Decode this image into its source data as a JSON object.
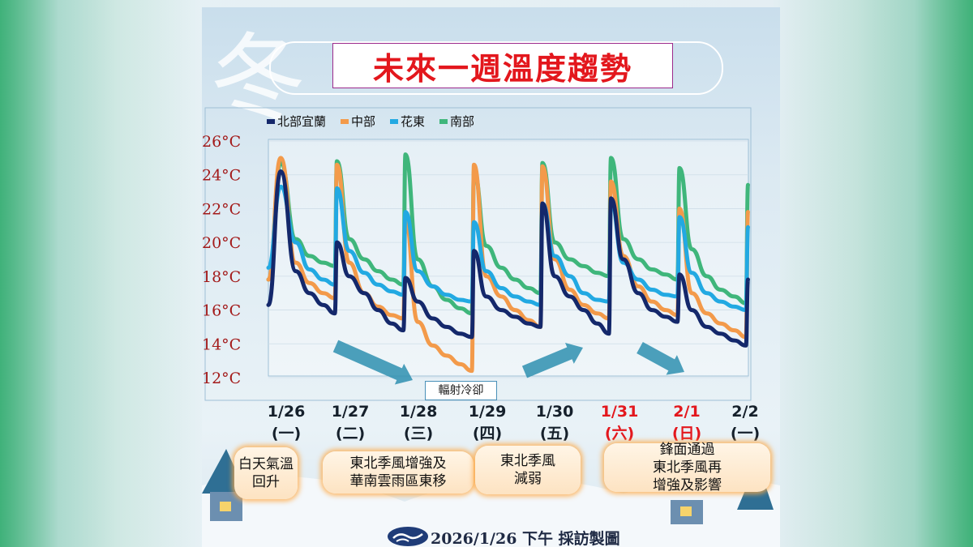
{
  "title": "未來一週溫度趨勢",
  "winter_glyph": "冬",
  "legend": [
    {
      "name": "北部宜蘭",
      "color": "#14286b"
    },
    {
      "name": "中部",
      "color": "#f39a4a"
    },
    {
      "name": "花東",
      "color": "#22a9e2"
    },
    {
      "name": "南部",
      "color": "#3fb67b"
    }
  ],
  "y_ticks": [
    "26°C",
    "24°C",
    "22°C",
    "20°C",
    "18°C",
    "16°C",
    "14°C",
    "12°C"
  ],
  "dates": [
    {
      "date": "1/26",
      "weekday": "(一)",
      "red": false
    },
    {
      "date": "1/27",
      "weekday": "(二)",
      "red": false
    },
    {
      "date": "1/28",
      "weekday": "(三)",
      "red": false
    },
    {
      "date": "1/29",
      "weekday": "(四)",
      "red": false
    },
    {
      "date": "1/30",
      "weekday": "(五)",
      "red": false
    },
    {
      "date": "1/31",
      "weekday": "(六)",
      "red": true
    },
    {
      "date": "2/1",
      "weekday": "(日)",
      "red": true
    },
    {
      "date": "2/2",
      "weekday": "(一)",
      "red": false
    }
  ],
  "annotation": "輻射冷卻",
  "notes": [
    {
      "line1": "白天氣溫",
      "line2": "回升",
      "line3": ""
    },
    {
      "line1": "東北季風增強及",
      "line2": "華南雲雨區東移",
      "line3": ""
    },
    {
      "line1": "東北季風",
      "line2": "減弱",
      "line3": ""
    },
    {
      "line1": "鋒面通過",
      "line2": "東北季風再",
      "line3": "增強及影響"
    }
  ],
  "footer": "2026/1/26 下午 採訪製圖",
  "colors": {
    "north": "#14286b",
    "central": "#f39a4a",
    "east": "#22a9e2",
    "south": "#3fb67b",
    "axis_label": "#a31a1a",
    "arrow": "#2e8fb0"
  },
  "chart_data": {
    "type": "line",
    "title": "未來一週溫度趨勢",
    "xlabel": "",
    "ylabel": "",
    "ylim": [
      12,
      26
    ],
    "categories": [
      "1/26",
      "1/27",
      "1/28",
      "1/29",
      "1/30",
      "1/31",
      "2/1",
      "2/2"
    ],
    "series": [
      {
        "name": "北部宜蘭",
        "daily": [
          [
            16.3,
            24.2,
            18.3,
            17.0,
            16.3,
            15.8
          ],
          [
            20.0,
            18.0,
            17.0,
            16.0,
            15.2,
            14.8
          ],
          [
            17.9,
            16.5,
            15.5,
            15.0,
            14.6,
            14.4
          ],
          [
            19.5,
            16.8,
            16.0,
            15.6,
            15.2,
            15.0
          ],
          [
            22.3,
            18.0,
            16.8,
            16.0,
            15.2,
            14.6
          ],
          [
            22.6,
            19.0,
            17.0,
            16.0,
            15.6,
            15.3
          ],
          [
            18.1,
            16.0,
            15.0,
            14.6,
            14.2,
            13.9
          ],
          [
            17.8
          ]
        ]
      },
      {
        "name": "中部",
        "daily": [
          [
            17.8,
            25.0,
            18.8,
            17.6,
            17.0,
            16.7
          ],
          [
            24.6,
            18.8,
            17.0,
            16.2,
            15.7,
            15.5
          ],
          [
            21.4,
            15.3,
            13.9,
            13.3,
            12.8,
            12.4
          ],
          [
            24.6,
            18.0,
            16.8,
            16.0,
            15.4,
            15.0
          ],
          [
            24.5,
            19.0,
            17.2,
            16.3,
            15.8,
            15.5
          ],
          [
            23.6,
            19.2,
            17.4,
            16.5,
            16.0,
            15.7
          ],
          [
            22.0,
            17.0,
            15.8,
            15.2,
            14.8,
            14.4
          ],
          [
            21.8
          ]
        ]
      },
      {
        "name": "花東",
        "daily": [
          [
            18.5,
            23.3,
            20.0,
            18.4,
            17.8,
            17.5
          ],
          [
            23.2,
            19.5,
            18.2,
            17.5,
            17.1,
            16.9
          ],
          [
            21.8,
            18.3,
            17.4,
            16.9,
            16.6,
            16.5
          ],
          [
            21.2,
            18.3,
            17.3,
            16.8,
            16.5,
            16.3
          ],
          [
            22.3,
            19.2,
            18.0,
            17.0,
            16.6,
            16.5
          ],
          [
            22.4,
            18.8,
            17.8,
            17.2,
            16.9,
            16.8
          ],
          [
            21.5,
            18.2,
            17.0,
            16.5,
            16.2,
            16.0
          ],
          [
            20.9
          ]
        ]
      },
      {
        "name": "南部",
        "daily": [
          [
            17.8,
            24.7,
            20.2,
            19.2,
            18.8,
            18.6
          ],
          [
            24.8,
            20.2,
            19.0,
            18.3,
            17.8,
            17.5
          ],
          [
            25.2,
            19.0,
            17.4,
            16.6,
            16.1,
            15.8
          ],
          [
            24.2,
            19.8,
            18.5,
            17.8,
            17.3,
            17.0
          ],
          [
            24.7,
            20.0,
            19.0,
            18.6,
            18.2,
            18.0
          ],
          [
            25.0,
            20.2,
            19.0,
            18.4,
            18.1,
            17.8
          ],
          [
            24.4,
            19.6,
            18.0,
            17.2,
            16.8,
            16.4
          ],
          [
            23.4
          ]
        ]
      }
    ]
  }
}
